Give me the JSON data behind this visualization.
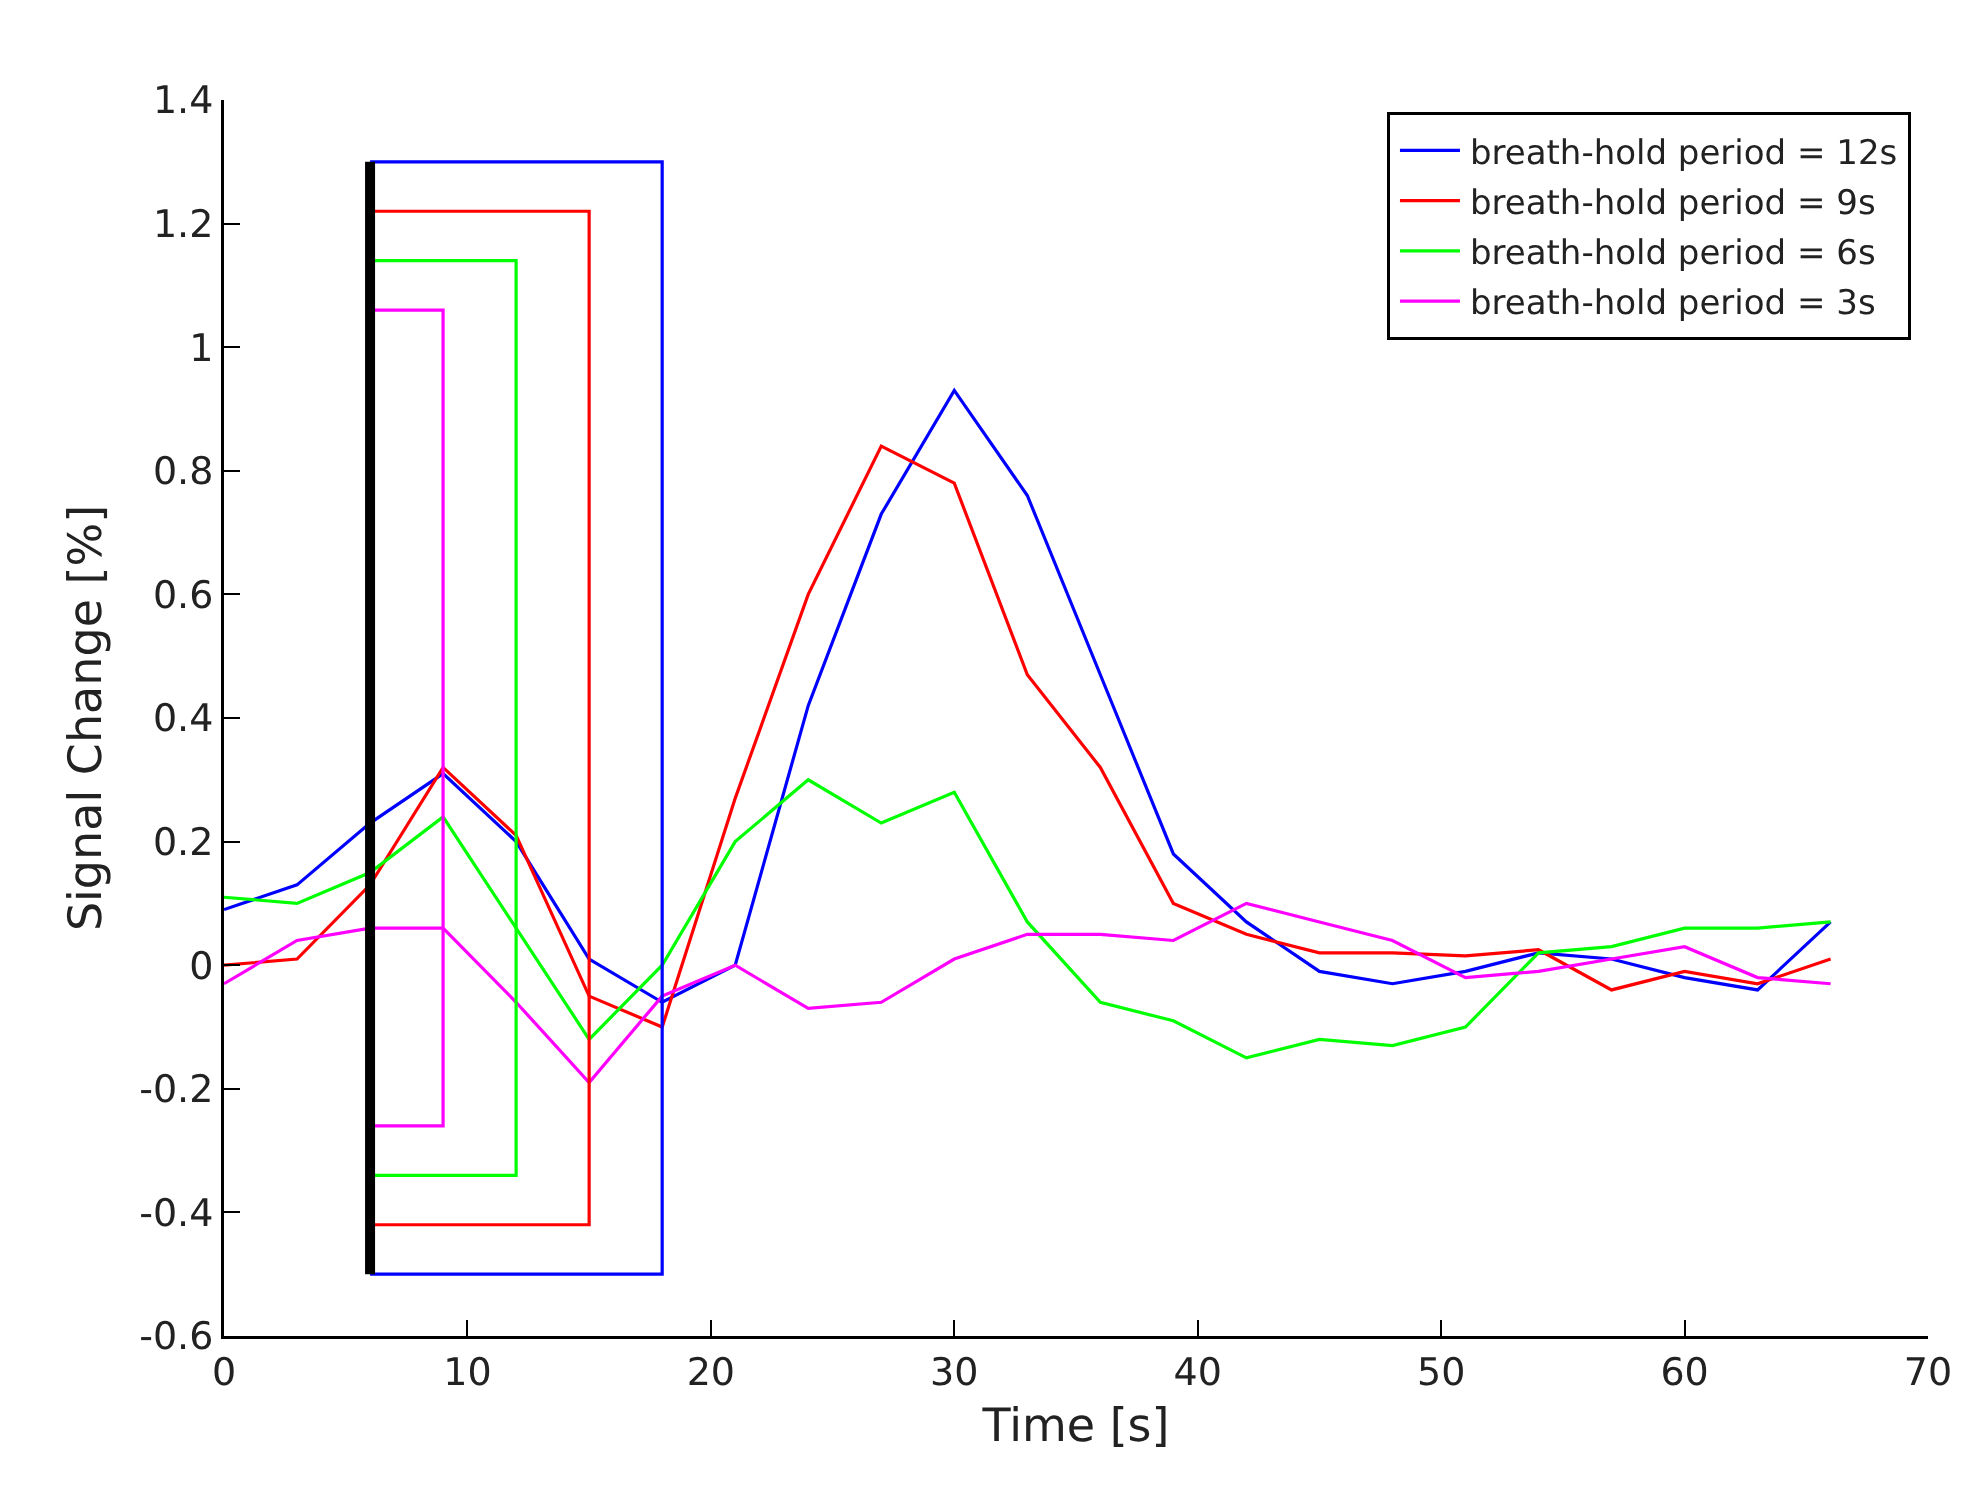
{
  "chart_data": {
    "type": "line",
    "xlabel": "Time [s]",
    "ylabel": "Signal Change [%]",
    "x": [
      0,
      3,
      6,
      9,
      12,
      15,
      18,
      21,
      24,
      27,
      30,
      33,
      36,
      39,
      42,
      45,
      48,
      51,
      54,
      57,
      60,
      63,
      66
    ],
    "xlim": [
      0,
      70
    ],
    "xticks": [
      0,
      10,
      20,
      30,
      40,
      50,
      60,
      70
    ],
    "ylim": [
      -0.6,
      1.4
    ],
    "yticks": [
      -0.6,
      -0.4,
      -0.2,
      0,
      0.2,
      0.4,
      0.6,
      0.8,
      1,
      1.2,
      1.4
    ],
    "grid": false,
    "legend": "top right",
    "marker": "none",
    "line_style": "solid",
    "series": [
      {
        "name": "breath-hold period = 12s",
        "color": "#0000ff",
        "values": [
          0.09,
          0.13,
          0.23,
          0.31,
          0.2,
          0.01,
          -0.06,
          0.0,
          0.42,
          0.73,
          0.93,
          0.76,
          0.47,
          0.18,
          0.07,
          -0.01,
          -0.03,
          -0.01,
          0.02,
          0.01,
          -0.02,
          -0.04,
          0.07
        ]
      },
      {
        "name": "breath-hold period = 9s",
        "color": "#ff0000",
        "values": [
          0.0,
          0.01,
          0.13,
          0.32,
          0.21,
          -0.05,
          -0.1,
          0.27,
          0.6,
          0.84,
          0.78,
          0.47,
          0.32,
          0.1,
          0.05,
          0.02,
          0.02,
          0.015,
          0.025,
          -0.04,
          -0.01,
          -0.03,
          0.01
        ]
      },
      {
        "name": "breath-hold period = 6s",
        "color": "#00ff00",
        "values": [
          0.11,
          0.1,
          0.15,
          0.24,
          0.06,
          -0.12,
          0.0,
          0.2,
          0.3,
          0.23,
          0.28,
          0.07,
          -0.06,
          -0.09,
          -0.15,
          -0.12,
          -0.13,
          -0.1,
          0.02,
          0.03,
          0.06,
          0.06,
          0.07
        ]
      },
      {
        "name": "breath-hold period = 3s",
        "color": "#ff00ff",
        "values": [
          -0.03,
          0.04,
          0.06,
          0.06,
          -0.06,
          -0.19,
          -0.05,
          0.0,
          -0.07,
          -0.06,
          0.01,
          0.05,
          0.05,
          0.04,
          0.1,
          0.07,
          0.04,
          -0.02,
          -0.01,
          0.01,
          0.03,
          -0.02,
          -0.03
        ]
      },
      {
        "type": "line",
        "color": "#0000ff",
        "x": [
          6,
          18,
          18,
          6
        ],
        "values": [
          1.3,
          1.3,
          -0.5,
          -0.5
        ]
      },
      {
        "type": "line",
        "color": "#ff0000",
        "x": [
          6,
          15,
          15,
          6
        ],
        "values": [
          1.22,
          1.22,
          -0.42,
          -0.42
        ]
      },
      {
        "type": "line",
        "color": "#00ff00",
        "x": [
          6,
          12,
          12,
          6
        ],
        "values": [
          1.14,
          1.14,
          -0.34,
          -0.34
        ]
      },
      {
        "type": "line",
        "color": "#ff00ff",
        "x": [
          6,
          9,
          9,
          6
        ],
        "values": [
          1.06,
          1.06,
          -0.26,
          -0.26
        ]
      },
      {
        "type": "line",
        "color": "#000000",
        "x": [
          6,
          6
        ],
        "values": [
          -0.5,
          1.3
        ]
      }
    ]
  }
}
